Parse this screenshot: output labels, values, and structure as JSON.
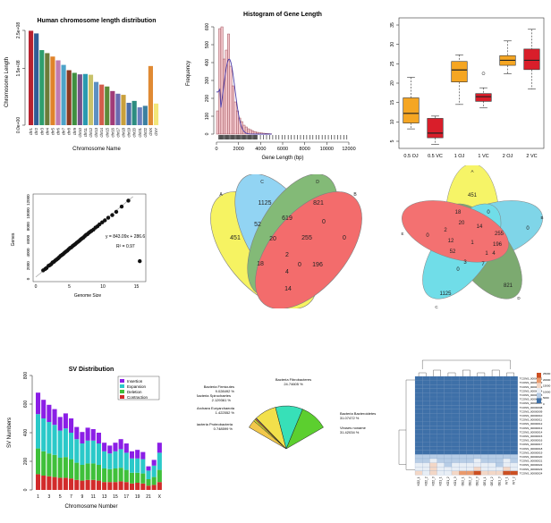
{
  "chart_data": [
    {
      "type": "bar",
      "title": "Human chromosome length distribution",
      "xlabel": "Chromosome Name",
      "ylabel": "Chromosome Length",
      "y_tick_labels": [
        "0.0e+00",
        "1.5e+08",
        "2.5e+08"
      ],
      "y_ticks": [
        0,
        150000000,
        250000000
      ],
      "ylim": [
        0,
        250000000
      ],
      "categories": [
        "chr1",
        "chr2",
        "chr3",
        "chr4",
        "chr5",
        "chr6",
        "chr7",
        "chr8",
        "chr9",
        "chr10",
        "chr11",
        "chr12",
        "chr13",
        "chr14",
        "chr15",
        "chr16",
        "chr17",
        "chr18",
        "chr19",
        "chr20",
        "chr21",
        "chr22",
        "chrX",
        "chrY"
      ],
      "values": [
        249000000,
        242000000,
        198000000,
        190000000,
        181000000,
        171000000,
        159000000,
        145000000,
        138000000,
        134000000,
        135000000,
        133000000,
        114000000,
        107000000,
        102000000,
        90000000,
        83000000,
        80000000,
        59000000,
        64000000,
        47000000,
        51000000,
        156000000,
        57000000
      ],
      "colors": [
        "#b8212f",
        "#2f5d96",
        "#2e9e6e",
        "#6b7b3a",
        "#e0832a",
        "#c07bb0",
        "#4da3c9",
        "#8a3a22",
        "#3f8f40",
        "#77518c",
        "#2a9ab0",
        "#c8c26a",
        "#5c8fc2",
        "#d25c4b",
        "#5b8b3a",
        "#a13b78",
        "#6b6bb0",
        "#c9a03c",
        "#4b6ea8",
        "#2c8c80",
        "#6a7fbf",
        "#3c7fa0",
        "#e08a34",
        "#f3e67a"
      ]
    },
    {
      "type": "histogram",
      "title": "Histogram of Gene Length",
      "xlabel": "Gene Length (bp)",
      "ylabel": "Frequency",
      "x_ticks": [
        0,
        2000,
        4000,
        6000,
        8000,
        10000,
        12000
      ],
      "y_ticks": [
        0,
        100,
        200,
        300,
        400,
        500,
        600
      ],
      "xlim": [
        0,
        12000
      ],
      "ylim": [
        0,
        600
      ],
      "bin_width": 200,
      "values": [
        130,
        590,
        600,
        420,
        470,
        560,
        380,
        270,
        180,
        130,
        90,
        70,
        50,
        40,
        30,
        25,
        18,
        14,
        10,
        8,
        6,
        5,
        4,
        3,
        2
      ]
    },
    {
      "type": "box",
      "categories": [
        "0.5 OJ",
        "0.5 VC",
        "1 OJ",
        "1 VC",
        "2 OJ",
        "2 VC"
      ],
      "y_ticks": [
        5,
        10,
        15,
        20,
        25,
        30,
        35
      ],
      "ylim": [
        5,
        35
      ],
      "boxes": [
        {
          "min": 8.2,
          "q1": 9.7,
          "median": 12.2,
          "q3": 16.2,
          "max": 21.5,
          "outliers": [],
          "color": "#f5a623"
        },
        {
          "min": 4.2,
          "q1": 5.9,
          "median": 7.1,
          "q3": 10.9,
          "max": 11.5,
          "outliers": [],
          "color": "#d91e2a"
        },
        {
          "min": 14.5,
          "q1": 20.3,
          "median": 23.4,
          "q3": 25.6,
          "max": 27.3,
          "outliers": [],
          "color": "#f5a623"
        },
        {
          "min": 13.6,
          "q1": 15.3,
          "median": 16.5,
          "q3": 17.3,
          "max": 18.8,
          "outliers": [
            22.5
          ],
          "color": "#d91e2a"
        },
        {
          "min": 22.4,
          "q1": 24.6,
          "median": 25.9,
          "q3": 27.1,
          "max": 30.9,
          "outliers": [],
          "color": "#f5a623"
        },
        {
          "min": 18.5,
          "q1": 23.5,
          "median": 25.9,
          "q3": 28.8,
          "max": 33.9,
          "outliers": [],
          "color": "#d91e2a"
        }
      ]
    },
    {
      "type": "scatter",
      "xlabel": "Genome Size",
      "ylabel": "Genes",
      "x_ticks": [
        0,
        5,
        10,
        15
      ],
      "y_ticks": [
        0,
        2000,
        4000,
        6000,
        8000,
        10000,
        12000
      ],
      "xlim": [
        0,
        16
      ],
      "ylim": [
        0,
        12500
      ],
      "annotations": [
        "y = 843.09x + 286.6",
        "R² = 0.97"
      ],
      "trendline": {
        "slope": 843.09,
        "intercept": 286.6
      },
      "points": [
        [
          1.1,
          1300
        ],
        [
          1.4,
          1500
        ],
        [
          1.6,
          1650
        ],
        [
          1.9,
          2000
        ],
        [
          2.1,
          2100
        ],
        [
          2.3,
          2250
        ],
        [
          2.5,
          2500
        ],
        [
          2.7,
          2600
        ],
        [
          2.9,
          2800
        ],
        [
          3.1,
          2950
        ],
        [
          3.3,
          3100
        ],
        [
          3.5,
          3300
        ],
        [
          3.7,
          3500
        ],
        [
          3.9,
          3650
        ],
        [
          4.1,
          3800
        ],
        [
          4.3,
          4000
        ],
        [
          4.5,
          4150
        ],
        [
          4.7,
          4300
        ],
        [
          4.9,
          4500
        ],
        [
          5.1,
          4700
        ],
        [
          5.3,
          4800
        ],
        [
          5.5,
          5000
        ],
        [
          5.7,
          5150
        ],
        [
          5.9,
          5300
        ],
        [
          6.1,
          5500
        ],
        [
          6.3,
          5650
        ],
        [
          6.5,
          5800
        ],
        [
          6.7,
          6000
        ],
        [
          6.9,
          6150
        ],
        [
          7.1,
          6300
        ],
        [
          7.3,
          6500
        ],
        [
          7.5,
          6700
        ],
        [
          7.7,
          6800
        ],
        [
          7.9,
          7000
        ],
        [
          8.1,
          7150
        ],
        [
          8.3,
          7300
        ],
        [
          8.6,
          7500
        ],
        [
          8.9,
          7800
        ],
        [
          9.2,
          8000
        ],
        [
          9.5,
          8300
        ],
        [
          9.9,
          8600
        ],
        [
          10.3,
          8900
        ],
        [
          10.8,
          9300
        ],
        [
          11.4,
          9700
        ],
        [
          12.0,
          10200
        ],
        [
          12.8,
          11000
        ],
        [
          13.8,
          11900
        ],
        [
          15.5,
          2700
        ]
      ]
    },
    {
      "type": "venn4",
      "set_labels": [
        "A",
        "C",
        "D",
        "B"
      ],
      "regions": [
        "451",
        "1125",
        "821",
        "0",
        "52",
        "619",
        "0",
        "20",
        "255",
        "2",
        "18",
        "0",
        "4",
        "196",
        "14"
      ]
    },
    {
      "type": "venn5",
      "set_labels": [
        "A",
        "B",
        "C",
        "D",
        "E"
      ],
      "regions": [
        "451",
        "0",
        "1125",
        "821",
        "0",
        "1",
        "18",
        "0",
        "2",
        "20",
        "52",
        "255",
        "3",
        "7",
        "4",
        "12",
        "196",
        "14",
        "1",
        "0"
      ]
    },
    {
      "type": "stacked_bar",
      "title": "SV Distribution",
      "xlabel": "Chromosome Number",
      "ylabel": "SV Numbers",
      "x_tick_labels": [
        "1",
        "3",
        "5",
        "7",
        "9",
        "11",
        "13",
        "15",
        "17",
        "19",
        "21",
        "X"
      ],
      "y_ticks": [
        0,
        200,
        400,
        600,
        800
      ],
      "ylim": [
        0,
        800
      ],
      "categories": [
        "1",
        "2",
        "3",
        "4",
        "5",
        "6",
        "7",
        "8",
        "9",
        "10",
        "11",
        "12",
        "13",
        "14",
        "15",
        "16",
        "17",
        "18",
        "19",
        "20",
        "21",
        "22",
        "X"
      ],
      "series": [
        {
          "name": "Insertion",
          "color": "#8b1ee6",
          "values": [
            150,
            130,
            120,
            110,
            95,
            105,
            100,
            85,
            80,
            90,
            80,
            75,
            60,
            55,
            60,
            70,
            65,
            50,
            60,
            50,
            30,
            40,
            70
          ]
        },
        {
          "name": "Expansion",
          "color": "#2bc9c9",
          "values": [
            240,
            230,
            220,
            210,
            190,
            200,
            185,
            165,
            150,
            160,
            160,
            150,
            120,
            110,
            120,
            130,
            120,
            100,
            100,
            100,
            60,
            80,
            120
          ]
        },
        {
          "name": "Deletion",
          "color": "#3fc03a",
          "values": [
            180,
            170,
            160,
            155,
            140,
            145,
            135,
            120,
            110,
            115,
            115,
            110,
            95,
            90,
            95,
            95,
            85,
            75,
            70,
            70,
            45,
            55,
            85
          ]
        },
        {
          "name": "Contraction",
          "color": "#d22b2b",
          "values": [
            110,
            100,
            95,
            90,
            85,
            85,
            80,
            70,
            65,
            70,
            70,
            65,
            55,
            55,
            55,
            60,
            55,
            45,
            50,
            45,
            30,
            35,
            55
          ]
        }
      ]
    },
    {
      "type": "pie",
      "labels": [
        "Bacteria Firmicutes",
        "Bacteria Spirochaetes",
        "Archaea Euryarchaeota",
        "Bacteria Proteobacteria",
        "Bacteria Fibrobacteres",
        "Bacteria Bacteroidetes",
        "Viruses noname"
      ],
      "percent_labels": [
        "9.028492 %",
        "2.129361 %",
        "1.422552 %",
        "0.748599 %",
        "24.74605 %",
        "31.07472 %",
        "31.42034 %"
      ],
      "values": [
        9.028492,
        2.129361,
        1.422552,
        0.748599,
        24.74605,
        31.07472,
        31.42034
      ],
      "colors": [
        "#f2c84b",
        "#c9e23b",
        "#e07a2b",
        "#3b7de0",
        "#f2e04b",
        "#37e0b8",
        "#5ccf2f"
      ]
    },
    {
      "type": "heatmap",
      "colors": [
        "#3a6ea5",
        "#f5f5f5",
        "#d9622b"
      ],
      "color_scale_labels": [
        "0",
        "5000",
        "10000",
        "15000",
        "20000",
        "25000"
      ],
      "row_labels": [
        "TCONS_00000001",
        "TCONS_00000002",
        "TCONS_00000003",
        "TCONS_00000004",
        "TCONS_00000005",
        "TCONS_00000006",
        "TCONS_00000007",
        "TCONS_00000008",
        "TCONS_00000009",
        "TCONS_00000010",
        "TCONS_00000011",
        "TCONS_00000012",
        "TCONS_00000013",
        "TCONS_00000014",
        "TCONS_00000015",
        "TCONS_00000016",
        "TCONS_00000017",
        "TCONS_00000018",
        "TCONS_00000019",
        "TCONS_00000020",
        "TCONS_00000021",
        "TCONS_00000022",
        "TCONS_00000023",
        "TCONS_00000024"
      ],
      "col_labels": [
        "KO2_1",
        "KO2_2",
        "KO2_3",
        "KO1_1",
        "KO1_2",
        "KO1_3",
        "OE2_1",
        "OE2_2",
        "OE2_3",
        "OE1_1",
        "OE1_2",
        "OE1_3",
        "WT_1",
        "WT_2"
      ],
      "values": [
        [
          2,
          2,
          2,
          2,
          2,
          2,
          2,
          2,
          2,
          2,
          2,
          2,
          2,
          2
        ],
        [
          2,
          2,
          2,
          2,
          2,
          2,
          2,
          2,
          2,
          2,
          2,
          2,
          2,
          2
        ],
        [
          2,
          2,
          2,
          2,
          2,
          2,
          2,
          2,
          2,
          2,
          2,
          2,
          2,
          2
        ],
        [
          2,
          2,
          2,
          2,
          2,
          2,
          2,
          2,
          2,
          2,
          2,
          2,
          2,
          2
        ],
        [
          2,
          2,
          2,
          2,
          2,
          2,
          2,
          2,
          2,
          2,
          2,
          2,
          2,
          2
        ],
        [
          2,
          2,
          2,
          2,
          2,
          2,
          2,
          2,
          2,
          2,
          2,
          2,
          2,
          2
        ],
        [
          2,
          2,
          2,
          2,
          2,
          2,
          2,
          2,
          2,
          2,
          2,
          2,
          2,
          2
        ],
        [
          2,
          2,
          2,
          2,
          2,
          2,
          2,
          2,
          2,
          2,
          2,
          2,
          2,
          2
        ],
        [
          2,
          2,
          2,
          2,
          2,
          2,
          2,
          2,
          2,
          2,
          2,
          2,
          2,
          2
        ],
        [
          2,
          2,
          2,
          2,
          2,
          2,
          2,
          2,
          2,
          2,
          2,
          2,
          2,
          2
        ],
        [
          2,
          2,
          2,
          2,
          2,
          2,
          2,
          2,
          2,
          2,
          2,
          2,
          2,
          2
        ],
        [
          2,
          2,
          2,
          2,
          2,
          2,
          2,
          2,
          2,
          2,
          2,
          2,
          2,
          2
        ],
        [
          2,
          2,
          2,
          2,
          2,
          2,
          2,
          2,
          2,
          2,
          2,
          2,
          2,
          2
        ],
        [
          2,
          2,
          2,
          2,
          2,
          2,
          2,
          2,
          2,
          2,
          2,
          2,
          2,
          2
        ],
        [
          2,
          2,
          2,
          2,
          2,
          2,
          2,
          2,
          2,
          2,
          2,
          2,
          2,
          2
        ],
        [
          2,
          2,
          2,
          2,
          2,
          2,
          2,
          2,
          2,
          2,
          2,
          2,
          2,
          2
        ],
        [
          2,
          2,
          2,
          2,
          2,
          2,
          2,
          2,
          2,
          2,
          2,
          2,
          2,
          2
        ],
        [
          2,
          2,
          2,
          2,
          2,
          2,
          2,
          2,
          2,
          2,
          2,
          2,
          2,
          2
        ],
        [
          2,
          2,
          2,
          2,
          2,
          2,
          2,
          2,
          2,
          2,
          2,
          2,
          2,
          2
        ],
        [
          6,
          5,
          6,
          5,
          4,
          6,
          5,
          6,
          7,
          6,
          5,
          4,
          6,
          5
        ],
        [
          7,
          6,
          8,
          6,
          5,
          7,
          6,
          7,
          8,
          7,
          6,
          5,
          8,
          6
        ],
        [
          9,
          8,
          11,
          8,
          7,
          9,
          8,
          9,
          10,
          8,
          9,
          7,
          10,
          9
        ],
        [
          10,
          9,
          13,
          9,
          8,
          10,
          9,
          10,
          12,
          9,
          10,
          8,
          11,
          10
        ],
        [
          11,
          10,
          12,
          10,
          9,
          12,
          15,
          16,
          21,
          13,
          14,
          11,
          22,
          21
        ]
      ]
    }
  ]
}
